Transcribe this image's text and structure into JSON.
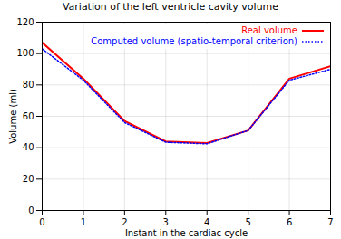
{
  "chart_data": {
    "type": "line",
    "title": "Variation of the left ventricle cavity volume",
    "x_label": "Instant in the cardiac cycle",
    "y_label": "Volume (ml)",
    "x": [
      0,
      1,
      2,
      3,
      4,
      5,
      6,
      7
    ],
    "series": [
      {
        "name": "Real volume",
        "color": "#ff0000",
        "line_style": "solid",
        "values": [
          107,
          84,
          57,
          44,
          43,
          51,
          84,
          92
        ]
      },
      {
        "name": "Computed volume (spatio-temporal criterion)",
        "color": "#0000ff",
        "line_style": "dotted",
        "values": [
          103,
          83,
          56,
          43.5,
          42.5,
          51,
          83,
          90
        ]
      }
    ],
    "xlim": [
      0,
      7
    ],
    "xticks": [
      0,
      1,
      2,
      3,
      4,
      5,
      6,
      7
    ],
    "ylim": [
      0,
      120
    ],
    "yticks": [
      0,
      20,
      40,
      60,
      80,
      100,
      120
    ],
    "grid": true,
    "legend": "upper right"
  }
}
